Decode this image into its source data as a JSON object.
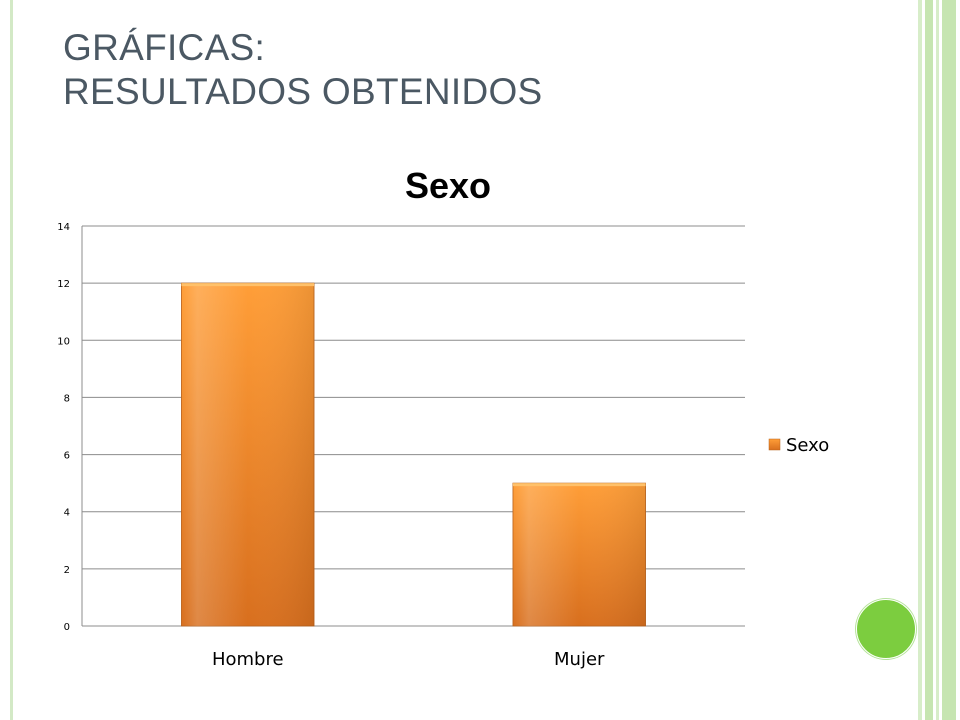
{
  "slide": {
    "title_line1": "GRÁFICAS:",
    "title_line2": "RESULTADOS OBTENIDOS"
  },
  "colors": {
    "accent_green": "#7ccd3f",
    "bar_top": "#ff9e38",
    "bar_bottom": "#d86f1e",
    "stripe_green": "#c8e6b4",
    "title_gray": "#4b5863"
  },
  "chart_data": {
    "type": "bar",
    "title": "Sexo",
    "categories": [
      "Hombre",
      "Mujer"
    ],
    "series": [
      {
        "name": "Sexo",
        "values": [
          12,
          5
        ]
      }
    ],
    "ylim": [
      0,
      14
    ],
    "yticks": [
      0,
      2,
      4,
      6,
      8,
      10,
      12,
      14
    ],
    "grid": true,
    "legend": "right"
  }
}
